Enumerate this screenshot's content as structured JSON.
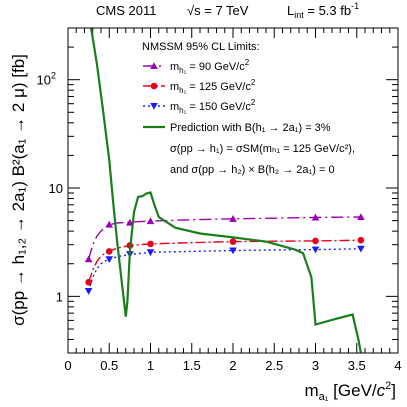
{
  "chart_data": {
    "type": "line",
    "header": {
      "experiment": "CMS 2011",
      "energy": "√s = 7 TeV",
      "lumi_main": "L",
      "lumi_sub": "int",
      "lumi_value": " = 5.3 fb",
      "lumi_exp": "-1"
    },
    "xlabel": "m",
    "xlabel_sub": "a₁",
    "xlabel_unit": " [GeV/",
    "xlabel_unit_c": "c",
    "xlabel_unit_exp": "2",
    "xlabel_unit_close": "]",
    "ylabel": "σ(pp → h₁,₂ → 2a₁) B²(a₁ → 2 μ) [fb]",
    "xlim": [
      0,
      4
    ],
    "ylim": [
      0.3,
      300
    ],
    "yscale": "log",
    "x_ticks": [
      "0",
      "0.5",
      "1",
      "1.5",
      "2",
      "2.5",
      "3",
      "3.5",
      "4"
    ],
    "y_ticks": [
      {
        "value": 1,
        "label": "1"
      },
      {
        "value": 10,
        "label": "10"
      },
      {
        "value": 100,
        "label": "10",
        "exp": "2"
      }
    ],
    "legend_title": "NMSSM 95% CL Limits:",
    "legend_position": "top-right",
    "series": [
      {
        "name": "m_h1 = 90 GeV/c2",
        "legend_lhs": "m",
        "legend_sub": "h₁",
        "legend_rhs": " =   90 GeV/c",
        "legend_exp": "2",
        "color": "#9b00b4",
        "dash": "12,4,2,4",
        "marker": "triangle-up",
        "x": [
          0.25,
          0.5,
          0.75,
          1.0,
          2.0,
          3.0,
          3.55
        ],
        "y": [
          2.2,
          4.6,
          4.8,
          4.95,
          5.2,
          5.35,
          5.4
        ],
        "curve_x": [
          0.25,
          0.3,
          0.35,
          0.4,
          0.45,
          0.5,
          0.6,
          0.7,
          0.8,
          1.0,
          1.5,
          2.0,
          2.5,
          3.0,
          3.55
        ],
        "curve_y": [
          2.2,
          3.0,
          3.6,
          4.0,
          4.35,
          4.6,
          4.75,
          4.82,
          4.88,
          4.95,
          5.1,
          5.2,
          5.27,
          5.35,
          5.4
        ]
      },
      {
        "name": "m_h1 = 125 GeV/c2",
        "legend_lhs": "m",
        "legend_sub": "h₁",
        "legend_rhs": " = 125 GeV/c",
        "legend_exp": "2",
        "color": "#e8001c",
        "dash": "10,3,2,3",
        "marker": "circle",
        "x": [
          0.25,
          0.5,
          0.75,
          1.0,
          2.0,
          3.0,
          3.55
        ],
        "y": [
          1.35,
          2.6,
          2.95,
          3.05,
          3.2,
          3.25,
          3.3
        ],
        "curve_x": [
          0.25,
          0.3,
          0.35,
          0.4,
          0.45,
          0.5,
          0.6,
          0.7,
          0.8,
          1.0,
          1.5,
          2.0,
          2.5,
          3.0,
          3.55
        ],
        "curve_y": [
          1.35,
          1.75,
          2.1,
          2.35,
          2.5,
          2.6,
          2.8,
          2.9,
          2.97,
          3.05,
          3.13,
          3.2,
          3.23,
          3.25,
          3.3
        ]
      },
      {
        "name": "m_h1 = 150 GeV/c2",
        "legend_lhs": "m",
        "legend_sub": "h₁",
        "legend_rhs": " = 150 GeV/c",
        "legend_exp": "2",
        "color": "#1a1aff",
        "dash": "2,3",
        "marker": "triangle-down",
        "x": [
          0.25,
          0.5,
          0.75,
          1.0,
          2.0,
          3.0,
          3.55
        ],
        "y": [
          1.12,
          2.2,
          2.45,
          2.55,
          2.65,
          2.7,
          2.75
        ],
        "curve_x": [
          0.25,
          0.3,
          0.35,
          0.4,
          0.45,
          0.5,
          0.6,
          0.7,
          0.8,
          1.0,
          1.5,
          2.0,
          2.5,
          3.0,
          3.55
        ],
        "curve_y": [
          1.12,
          1.5,
          1.8,
          2.0,
          2.12,
          2.2,
          2.33,
          2.4,
          2.46,
          2.55,
          2.6,
          2.65,
          2.68,
          2.7,
          2.75
        ]
      },
      {
        "name": "Prediction",
        "legend_text": "Prediction with B(h₁ → 2a₁) = 3%",
        "legend_line2": "σ(pp → h₁) = σSM(mₕ₁ = 125 GeV/c²),",
        "legend_line3": "and σ(pp → h₂) × B(h₂ → 2a₁) = 0",
        "color": "#1a7f1a",
        "dash": "",
        "x": [
          0.28,
          0.35,
          0.42,
          0.5,
          0.55,
          0.6,
          0.65,
          0.7,
          0.72,
          0.75,
          0.8,
          0.85,
          0.9,
          0.95,
          1.0,
          1.05,
          1.1,
          1.3,
          1.6,
          2.0,
          2.4,
          2.75,
          2.85,
          2.95,
          3.0,
          3.25,
          3.45,
          3.52,
          3.55
        ],
        "y": [
          300,
          140,
          55,
          18,
          7.0,
          3.0,
          1.4,
          0.65,
          0.9,
          2.6,
          6.0,
          8.3,
          8.4,
          8.9,
          9.1,
          6.9,
          5.4,
          4.3,
          3.8,
          3.5,
          3.2,
          2.7,
          2.5,
          1.5,
          0.55,
          0.62,
          0.68,
          0.4,
          0.3
        ]
      }
    ]
  }
}
